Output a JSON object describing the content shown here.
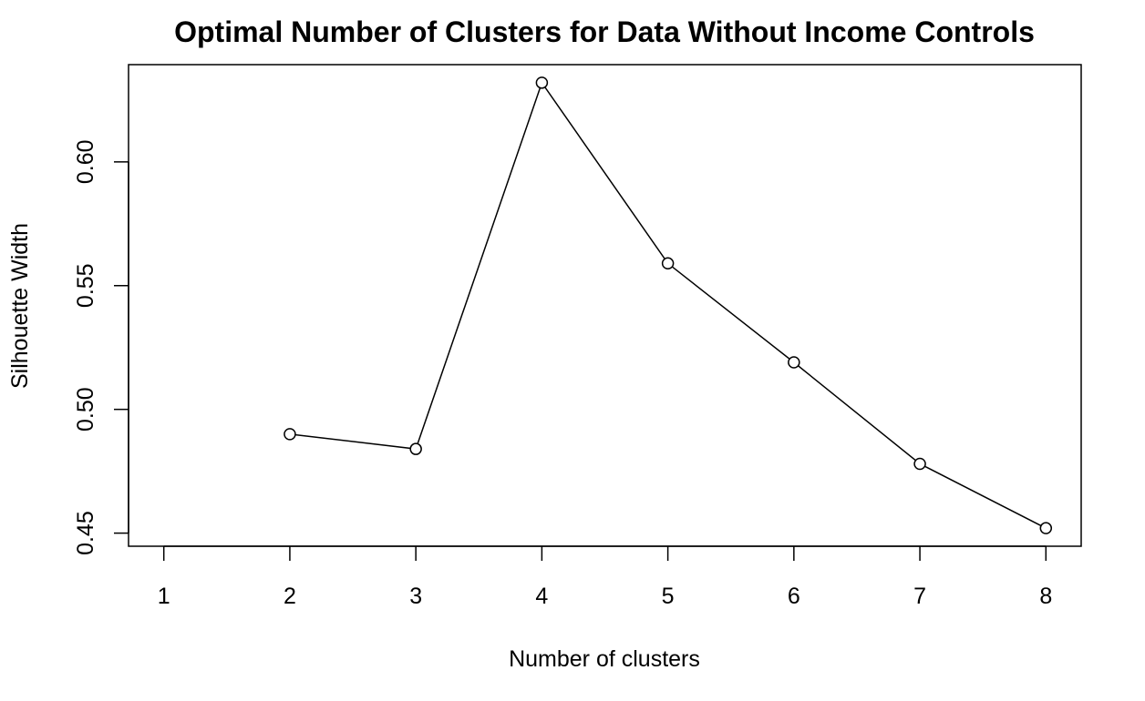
{
  "chart_data": {
    "type": "line",
    "title": "Optimal Number of Clusters for Data Without Income Controls",
    "xlabel": "Number of clusters",
    "ylabel": "Silhouette Width",
    "x": [
      2,
      3,
      4,
      5,
      6,
      7,
      8
    ],
    "y": [
      0.49,
      0.484,
      0.632,
      0.559,
      0.519,
      0.478,
      0.452
    ],
    "x_ticks": [
      "1",
      "2",
      "3",
      "4",
      "5",
      "6",
      "7",
      "8"
    ],
    "x_tick_values": [
      1,
      2,
      3,
      4,
      5,
      6,
      7,
      8
    ],
    "y_ticks": [
      "0.45",
      "0.50",
      "0.55",
      "0.60"
    ],
    "y_tick_values": [
      0.45,
      0.5,
      0.55,
      0.6
    ],
    "xlim": [
      0.72,
      8.28
    ],
    "ylim": [
      0.4447,
      0.6393
    ],
    "grid": false,
    "legend": "none",
    "marker": "open-circle",
    "line_color": "#000000"
  }
}
